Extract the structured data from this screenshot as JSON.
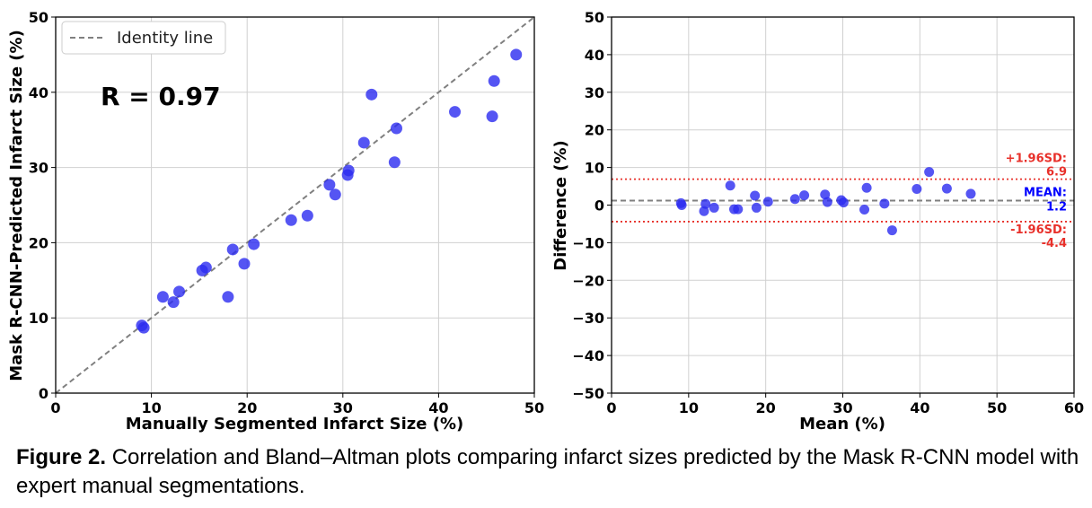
{
  "chart_data": [
    {
      "type": "scatter",
      "xlabel": "Manually Segmented Infarct Size (%)",
      "ylabel": "Mask R-CNN-Predicted Infarct Size (%)",
      "xlim": [
        0,
        50
      ],
      "ylim": [
        0,
        50
      ],
      "xticks": [
        "0",
        "10",
        "20",
        "30",
        "40",
        "50"
      ],
      "yticks": [
        "0",
        "10",
        "20",
        "30",
        "40",
        "50"
      ],
      "grid": true,
      "legend": {
        "position": "top-left",
        "entries": [
          "Identity line"
        ]
      },
      "annotation": "R = 0.97",
      "point_color": "#2b2bf0",
      "identity_color": "#808080",
      "points": [
        {
          "x": 9.0,
          "y": 9.0
        },
        {
          "x": 9.2,
          "y": 8.7
        },
        {
          "x": 11.2,
          "y": 12.8
        },
        {
          "x": 12.3,
          "y": 12.1
        },
        {
          "x": 12.9,
          "y": 13.5
        },
        {
          "x": 15.3,
          "y": 16.3
        },
        {
          "x": 15.7,
          "y": 16.7
        },
        {
          "x": 18.0,
          "y": 12.8
        },
        {
          "x": 18.5,
          "y": 19.1
        },
        {
          "x": 19.7,
          "y": 17.2
        },
        {
          "x": 20.7,
          "y": 19.8
        },
        {
          "x": 24.6,
          "y": 23.0
        },
        {
          "x": 26.3,
          "y": 23.6
        },
        {
          "x": 28.6,
          "y": 27.7
        },
        {
          "x": 29.2,
          "y": 26.4
        },
        {
          "x": 30.5,
          "y": 29.0
        },
        {
          "x": 30.6,
          "y": 29.6
        },
        {
          "x": 32.2,
          "y": 33.3
        },
        {
          "x": 33.0,
          "y": 39.7
        },
        {
          "x": 35.4,
          "y": 30.7
        },
        {
          "x": 35.6,
          "y": 35.2
        },
        {
          "x": 41.7,
          "y": 37.4
        },
        {
          "x": 45.6,
          "y": 36.8
        },
        {
          "x": 45.8,
          "y": 41.5
        },
        {
          "x": 48.1,
          "y": 45.0
        }
      ]
    },
    {
      "type": "scatter",
      "xlabel": "Mean (%)",
      "ylabel": "Difference (%)",
      "xlim": [
        0,
        60
      ],
      "ylim": [
        -50,
        50
      ],
      "xticks": [
        "0",
        "10",
        "20",
        "30",
        "40",
        "50",
        "60"
      ],
      "yticks": [
        "50",
        "40",
        "30",
        "20",
        "10",
        "0",
        "−10",
        "−20",
        "−30",
        "−40",
        "−50"
      ],
      "grid": true,
      "mean": 1.2,
      "upper_loa": 6.9,
      "lower_loa": -4.4,
      "mean_label": "MEAN:",
      "mean_value": "1.2",
      "upper_label": "+1.96SD:",
      "upper_value": "6.9",
      "lower_label": "-1.96SD:",
      "lower_value": "-4.4",
      "point_color": "#2b2bf0",
      "mean_color": "#0000ff",
      "loa_color": "#e8302a",
      "points": [
        {
          "x": 9.0,
          "y": 0.5
        },
        {
          "x": 9.1,
          "y": 0.0
        },
        {
          "x": 12.0,
          "y": -1.6
        },
        {
          "x": 12.2,
          "y": 0.3
        },
        {
          "x": 13.3,
          "y": -0.7
        },
        {
          "x": 15.4,
          "y": 5.2
        },
        {
          "x": 15.9,
          "y": -1.1
        },
        {
          "x": 16.4,
          "y": -1.1
        },
        {
          "x": 18.6,
          "y": 2.5
        },
        {
          "x": 18.8,
          "y": -0.7
        },
        {
          "x": 20.3,
          "y": 0.9
        },
        {
          "x": 23.8,
          "y": 1.6
        },
        {
          "x": 25.0,
          "y": 2.6
        },
        {
          "x": 27.7,
          "y": 2.8
        },
        {
          "x": 28.0,
          "y": 0.8
        },
        {
          "x": 29.8,
          "y": 1.3
        },
        {
          "x": 30.1,
          "y": 0.7
        },
        {
          "x": 32.8,
          "y": -1.2
        },
        {
          "x": 33.1,
          "y": 4.6
        },
        {
          "x": 35.4,
          "y": 0.4
        },
        {
          "x": 36.4,
          "y": -6.7
        },
        {
          "x": 39.6,
          "y": 4.3
        },
        {
          "x": 41.2,
          "y": 8.8
        },
        {
          "x": 43.5,
          "y": 4.4
        },
        {
          "x": 46.6,
          "y": 3.0
        }
      ]
    }
  ],
  "caption": {
    "label": "Figure 2.",
    "text": " Correlation and Bland–Altman plots comparing infarct sizes predicted by the Mask R-CNN model with expert manual segmentations."
  }
}
